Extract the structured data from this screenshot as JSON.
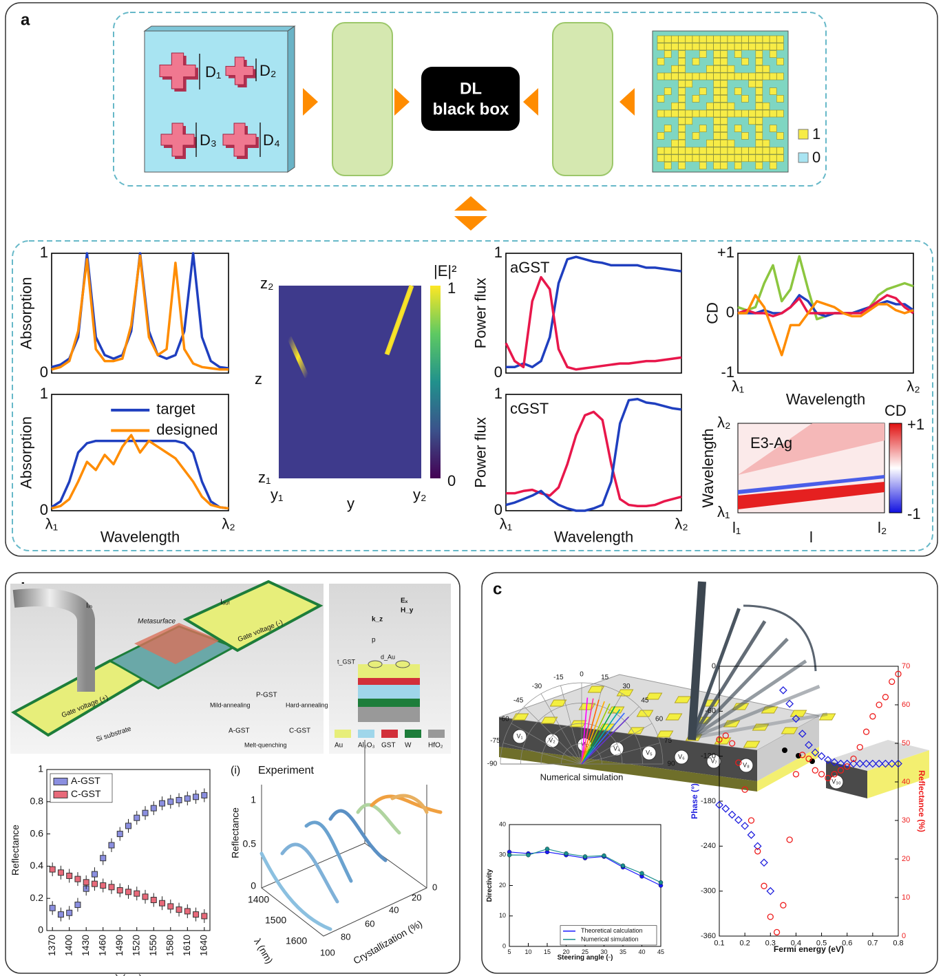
{
  "labels": [
    "a",
    "b",
    "c"
  ],
  "panel_a": {
    "dims": [
      "D₁",
      "D₂",
      "D₃",
      "D₄"
    ],
    "list1": [
      "D₁",
      "D₂",
      "D₃",
      "D₄",
      ".",
      ".",
      "."
    ],
    "blackbox": [
      "DL",
      "black box"
    ],
    "list2": [
      "1",
      "0",
      "1",
      "1",
      ".",
      ".",
      "."
    ],
    "legend": [
      "1",
      "0"
    ],
    "heatmap": {
      "title": "|E|²",
      "ylabel": "z",
      "xlabel": "y",
      "yticks": [
        "z₂",
        "z₁"
      ],
      "xticks": [
        "y₁",
        "y₂"
      ],
      "cbticks": [
        1,
        0
      ]
    },
    "cdmap": {
      "annotation": "E3-Ag",
      "title": "CD",
      "ylabel": "Wavelength",
      "xlabel": "l",
      "yticks": [
        "λ₂",
        "λ₁"
      ],
      "xticks": [
        "l₁",
        "l₂"
      ],
      "cbticks": [
        "+1",
        "-1"
      ]
    }
  },
  "panel_b": {
    "device": {
      "iin": "Iᵢₙ",
      "iout": "Iₒᵤₜ",
      "meta": "Metasurface",
      "gplus": "Gate voltage (+)",
      "gminus": "Gate voltage (-)",
      "sub": "Si substrate",
      "pgst": "P-GST",
      "agst": "A-GST",
      "cgst": "C-GST",
      "mild": "Mild-annealing",
      "hard": "Hard-annealing",
      "melt": "Melt-quenching",
      "p": "p",
      "tgst": "t_GST",
      "dau": "d_Au",
      "ex": "Eₓ",
      "hy": "H_y",
      "kz": "k_z"
    },
    "materials": [
      "Au",
      "Al₂O₃",
      "GST",
      "W",
      "HfO₂"
    ],
    "plot3d": {
      "label": "(i)",
      "title": "Experiment",
      "zlabel": "Reflectance",
      "zticks": [
        1,
        0.5,
        0
      ],
      "ylabel": "λ (nm)",
      "yticks": [
        1400,
        1500,
        1600
      ],
      "xlabel": "Crystallization (%)",
      "xticks": [
        100,
        80,
        60,
        40,
        20,
        0
      ]
    }
  },
  "panel_c": {
    "voltages": [
      "V₁",
      "V₂",
      "V₃",
      "V₄",
      "V₅",
      "V₆",
      "V₇",
      "V₈",
      "V₃₀"
    ]
  },
  "chart_data": [
    {
      "type": "line",
      "ylabel": "Absorption",
      "x": [
        0,
        0.05,
        0.1,
        0.15,
        0.2,
        0.25,
        0.3,
        0.35,
        0.4,
        0.45,
        0.5,
        0.55,
        0.6,
        0.65,
        0.7,
        0.75,
        0.8,
        0.85,
        0.9,
        0.95,
        1
      ],
      "xlim": [
        0,
        1
      ],
      "ylim": [
        0,
        1
      ],
      "yticks": [
        0,
        1
      ],
      "series": [
        {
          "color": "#1f3fbf",
          "values": [
            0.05,
            0.07,
            0.12,
            0.3,
            1.0,
            0.3,
            0.15,
            0.12,
            0.15,
            0.35,
            1.0,
            0.35,
            0.15,
            0.12,
            0.15,
            0.35,
            1.0,
            0.3,
            0.1,
            0.05,
            0.04
          ]
        },
        {
          "color": "#ff8c00",
          "values": [
            0.03,
            0.05,
            0.1,
            0.35,
            0.95,
            0.2,
            0.1,
            0.1,
            0.12,
            0.4,
            0.98,
            0.3,
            0.15,
            0.2,
            0.92,
            0.2,
            0.08,
            0.05,
            0.04,
            0.03,
            0.03
          ]
        }
      ]
    },
    {
      "type": "line",
      "ylabel": "Absorption",
      "xlabel": "Wavelength",
      "x": [
        0,
        0.05,
        0.1,
        0.15,
        0.2,
        0.25,
        0.3,
        0.35,
        0.4,
        0.45,
        0.5,
        0.55,
        0.6,
        0.65,
        0.7,
        0.75,
        0.8,
        0.85,
        0.9,
        0.95,
        1
      ],
      "xlim": [
        0,
        1
      ],
      "xticks": [
        {
          "value": 0,
          "label": "λ₁"
        },
        {
          "value": 1,
          "label": "λ₂"
        }
      ],
      "ylim": [
        0,
        1
      ],
      "yticks": [
        0,
        1
      ],
      "legend": "upper center",
      "series": [
        {
          "name": "target",
          "color": "#1f3fbf",
          "values": [
            0.03,
            0.08,
            0.25,
            0.5,
            0.58,
            0.6,
            0.6,
            0.6,
            0.6,
            0.6,
            0.6,
            0.6,
            0.6,
            0.6,
            0.6,
            0.58,
            0.5,
            0.25,
            0.08,
            0.03,
            0.02
          ]
        },
        {
          "name": "designed",
          "color": "#ff8c00",
          "values": [
            0.02,
            0.04,
            0.1,
            0.25,
            0.42,
            0.35,
            0.48,
            0.4,
            0.55,
            0.65,
            0.5,
            0.6,
            0.55,
            0.5,
            0.45,
            0.35,
            0.25,
            0.12,
            0.05,
            0.03,
            0.02
          ]
        }
      ]
    },
    {
      "type": "line",
      "ylabel": "Power flux",
      "annotation": "aGST",
      "x": [
        0,
        0.05,
        0.1,
        0.15,
        0.2,
        0.25,
        0.3,
        0.35,
        0.4,
        0.45,
        0.5,
        0.55,
        0.6,
        0.65,
        0.7,
        0.75,
        0.8,
        0.85,
        0.9,
        0.95,
        1
      ],
      "xlim": [
        0,
        1
      ],
      "ylim": [
        0,
        1
      ],
      "yticks": [
        0,
        1
      ],
      "series": [
        {
          "color": "#1f3fbf",
          "values": [
            0.05,
            0.05,
            0.08,
            0.05,
            0.1,
            0.3,
            0.75,
            0.95,
            0.97,
            0.95,
            0.93,
            0.92,
            0.9,
            0.9,
            0.9,
            0.9,
            0.88,
            0.88,
            0.87,
            0.86,
            0.85
          ]
        },
        {
          "color": "#e8174b",
          "values": [
            0.25,
            0.1,
            0.05,
            0.6,
            0.8,
            0.7,
            0.2,
            0.05,
            0.03,
            0.04,
            0.05,
            0.06,
            0.07,
            0.08,
            0.08,
            0.09,
            0.1,
            0.1,
            0.11,
            0.12,
            0.13
          ]
        }
      ]
    },
    {
      "type": "line",
      "ylabel": "Power flux",
      "xlabel": "Wavelength",
      "annotation": "cGST",
      "x": [
        0,
        0.05,
        0.1,
        0.15,
        0.2,
        0.25,
        0.3,
        0.35,
        0.4,
        0.45,
        0.5,
        0.55,
        0.6,
        0.65,
        0.7,
        0.75,
        0.8,
        0.85,
        0.9,
        0.95,
        1
      ],
      "xlim": [
        0,
        1
      ],
      "xticks": [
        {
          "value": 0,
          "label": "λ₁"
        },
        {
          "value": 1,
          "label": "λ₂"
        }
      ],
      "ylim": [
        0,
        1
      ],
      "yticks": [
        0,
        1
      ],
      "series": [
        {
          "color": "#e8174b",
          "values": [
            0.15,
            0.15,
            0.17,
            0.18,
            0.15,
            0.13,
            0.2,
            0.4,
            0.65,
            0.82,
            0.85,
            0.78,
            0.4,
            0.1,
            0.05,
            0.04,
            0.04,
            0.05,
            0.08,
            0.1,
            0.12
          ]
        },
        {
          "color": "#1f3fbf",
          "values": [
            0.05,
            0.07,
            0.1,
            0.13,
            0.17,
            0.1,
            0.05,
            0.02,
            0,
            0,
            0.02,
            0.05,
            0.25,
            0.75,
            0.95,
            0.96,
            0.93,
            0.92,
            0.9,
            0.88,
            0.87
          ]
        }
      ]
    },
    {
      "type": "line",
      "ylabel": "CD",
      "xlabel": "Wavelength",
      "x": [
        0,
        0.05,
        0.1,
        0.15,
        0.2,
        0.25,
        0.3,
        0.35,
        0.4,
        0.45,
        0.5,
        0.55,
        0.6,
        0.65,
        0.7,
        0.75,
        0.8,
        0.85,
        0.9,
        0.95,
        1
      ],
      "xlim": [
        0,
        1
      ],
      "xticks": [
        {
          "value": 0,
          "label": "λ₁"
        },
        {
          "value": 1,
          "label": "λ₂"
        }
      ],
      "ylim": [
        -1,
        1
      ],
      "yticks": [
        {
          "value": 1,
          "label": "+1"
        },
        0,
        -1
      ],
      "series": [
        {
          "color": "#8cc63f",
          "values": [
            0.1,
            0.05,
            0.1,
            0.5,
            0.8,
            0.2,
            0.4,
            0.95,
            0.4,
            -0.1,
            -0.05,
            0,
            0,
            0,
            0.05,
            0.1,
            0.3,
            0.4,
            0.45,
            0.5,
            0.45
          ]
        },
        {
          "color": "#1f3fbf",
          "values": [
            0,
            0,
            0,
            0.05,
            0,
            0,
            0.1,
            0.3,
            0.2,
            0,
            -0.05,
            0,
            0,
            0,
            0.05,
            0.1,
            0.15,
            0.2,
            0.15,
            0.15,
            0.05
          ]
        },
        {
          "color": "#e8174b",
          "values": [
            0,
            0.05,
            0,
            0,
            -0.05,
            0,
            0.1,
            0.25,
            0,
            0,
            0,
            0,
            0,
            0,
            0,
            0.1,
            0.2,
            0.3,
            0.25,
            0.1,
            0
          ]
        },
        {
          "color": "#ff8c00",
          "values": [
            0,
            0,
            0.3,
            0.1,
            -0.3,
            -0.7,
            -0.2,
            -0.2,
            0,
            0.2,
            0.15,
            0.1,
            0,
            -0.05,
            -0.05,
            0.05,
            0.15,
            0.15,
            0.05,
            0,
            0.05
          ]
        }
      ]
    },
    {
      "type": "box",
      "ylabel": "Reflectance",
      "xlabel": "λ (nm)",
      "x": [
        1370,
        1385,
        1400,
        1415,
        1430,
        1445,
        1460,
        1475,
        1490,
        1505,
        1520,
        1535,
        1550,
        1565,
        1580,
        1595,
        1610,
        1625,
        1640
      ],
      "xlim": [
        1360,
        1650
      ],
      "xticks": [
        1370,
        1400,
        1430,
        1460,
        1490,
        1520,
        1550,
        1580,
        1610,
        1640
      ],
      "ylim": [
        0,
        1
      ],
      "yticks": [
        0,
        0.2,
        0.4,
        0.6,
        0.8,
        1
      ],
      "legend": "upper left",
      "series": [
        {
          "name": "A-GST",
          "color": "#8b8fe0",
          "values": [
            0.14,
            0.1,
            0.11,
            0.16,
            0.26,
            0.35,
            0.45,
            0.53,
            0.6,
            0.65,
            0.7,
            0.73,
            0.76,
            0.79,
            0.8,
            0.81,
            0.82,
            0.83,
            0.84
          ]
        },
        {
          "name": "C-GST",
          "color": "#e86a7a",
          "values": [
            0.38,
            0.36,
            0.34,
            0.32,
            0.3,
            0.29,
            0.28,
            0.27,
            0.25,
            0.24,
            0.23,
            0.21,
            0.19,
            0.17,
            0.15,
            0.13,
            0.12,
            0.1,
            0.09
          ]
        }
      ]
    },
    {
      "type": "polar",
      "title": "Numerical simulation",
      "thetaticks": [
        -90,
        -75,
        -60,
        -45,
        -30,
        -15,
        0,
        15,
        30,
        45,
        60,
        75,
        90
      ],
      "values": [
        5,
        10,
        15,
        20,
        25,
        30,
        35,
        40,
        45
      ],
      "colors": [
        "#ff00ff",
        "#ff3399",
        "#ff6600",
        "#ffaa00",
        "#99cc00",
        "#00aa44",
        "#00aaaa",
        "#3366ff",
        "#6633cc"
      ]
    },
    {
      "type": "line",
      "markers": true,
      "ylabel": "Directivity",
      "xlabel": "Steering angle (◦)",
      "x": [
        5,
        10,
        15,
        20,
        25,
        30,
        35,
        40,
        45
      ],
      "xlim": [
        5,
        45
      ],
      "xticks": [
        5,
        10,
        15,
        20,
        25,
        30,
        35,
        40,
        45
      ],
      "ylim": [
        0,
        40
      ],
      "yticks": [
        0,
        10,
        20,
        30,
        40
      ],
      "legend": "lower right",
      "series": [
        {
          "name": "Theoretical calculation",
          "color": "#1a1aff",
          "values": [
            31,
            30.5,
            31,
            30,
            29,
            29.5,
            26,
            23,
            20
          ]
        },
        {
          "name": "Numerical simulation",
          "color": "#1a8f8f",
          "values": [
            30,
            30,
            32,
            30.5,
            29.5,
            29.8,
            26.5,
            24,
            21
          ]
        }
      ]
    },
    {
      "type": "scatter",
      "ylabel": "Phase (°)",
      "y2label": "Reflectance (%)",
      "xlabel": "Fermi energy (eV)",
      "x": [
        0.1,
        0.125,
        0.15,
        0.175,
        0.2,
        0.225,
        0.25,
        0.275,
        0.3,
        0.325,
        0.35,
        0.375,
        0.4,
        0.425,
        0.45,
        0.475,
        0.5,
        0.525,
        0.55,
        0.575,
        0.6,
        0.625,
        0.65,
        0.675,
        0.7,
        0.725,
        0.75,
        0.775,
        0.8
      ],
      "xlim": [
        0.1,
        0.8
      ],
      "xticks": [
        0.1,
        0.2,
        0.3,
        0.4,
        0.5,
        0.6,
        0.7,
        0.8
      ],
      "ylim": [
        -360,
        0
      ],
      "yticks": [
        0,
        -60,
        -120,
        -180,
        -240,
        -300,
        -360
      ],
      "y2lim": [
        0,
        70
      ],
      "y2ticks": [
        0,
        10,
        20,
        30,
        40,
        50,
        60,
        70
      ],
      "series": [
        {
          "color": "#1f1fdd",
          "marker": "D",
          "values": [
            -185,
            -190,
            -198,
            -205,
            -213,
            -225,
            -240,
            -262,
            -300,
            null,
            -32,
            -50,
            -70,
            -90,
            -105,
            -115,
            -120,
            -125,
            -128,
            -130,
            -130,
            -130,
            -130,
            -130,
            -130,
            -130,
            -130,
            -130,
            -130
          ]
        },
        {
          "color": "#ee1c1c",
          "marker": "o",
          "axis": "y2",
          "values": [
            51,
            52,
            50,
            45,
            38,
            30,
            22,
            13,
            5,
            1,
            8,
            25,
            42,
            47,
            46,
            43,
            42,
            41,
            42,
            43,
            44,
            46,
            49,
            53,
            57,
            60,
            62,
            66,
            68
          ]
        }
      ]
    }
  ]
}
